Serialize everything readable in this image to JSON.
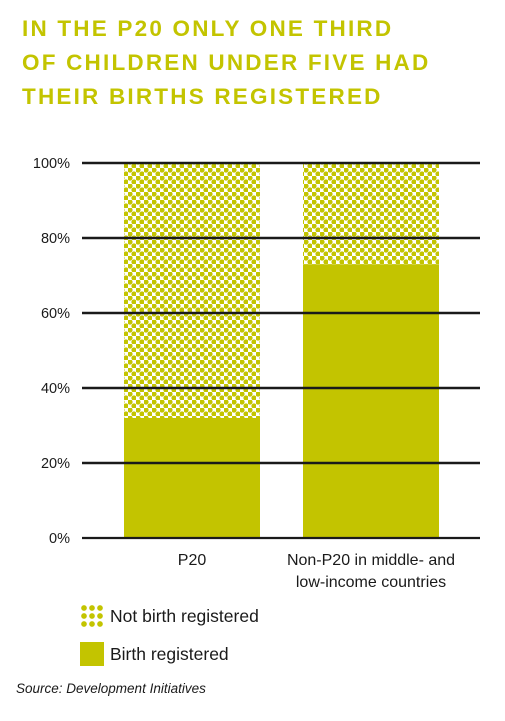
{
  "title_lines": [
    "IN THE P20 ONLY ONE THIRD",
    "OF CHILDREN UNDER FIVE HAD",
    "THEIR BIRTHS REGISTERED"
  ],
  "source": "Source: Development Initiatives",
  "colors": {
    "accent": "#c3c400",
    "text": "#1a1a1a",
    "grid": "#1a1a1a"
  },
  "legend": [
    {
      "label": "Not birth registered",
      "style": "dotted"
    },
    {
      "label": "Birth registered",
      "style": "solid"
    }
  ],
  "chart_data": {
    "type": "bar",
    "stacked": true,
    "categories": [
      [
        "P20"
      ],
      [
        "Non-P20 in middle- and",
        "low-income countries"
      ]
    ],
    "series": [
      {
        "name": "Birth registered",
        "values": [
          32,
          73
        ]
      },
      {
        "name": "Not birth registered",
        "values": [
          68,
          27
        ]
      }
    ],
    "ylim": [
      0,
      100
    ],
    "yticks": [
      "0%",
      "20%",
      "40%",
      "60%",
      "80%",
      "100%"
    ],
    "grid": true,
    "legend_position": "bottom-left"
  }
}
